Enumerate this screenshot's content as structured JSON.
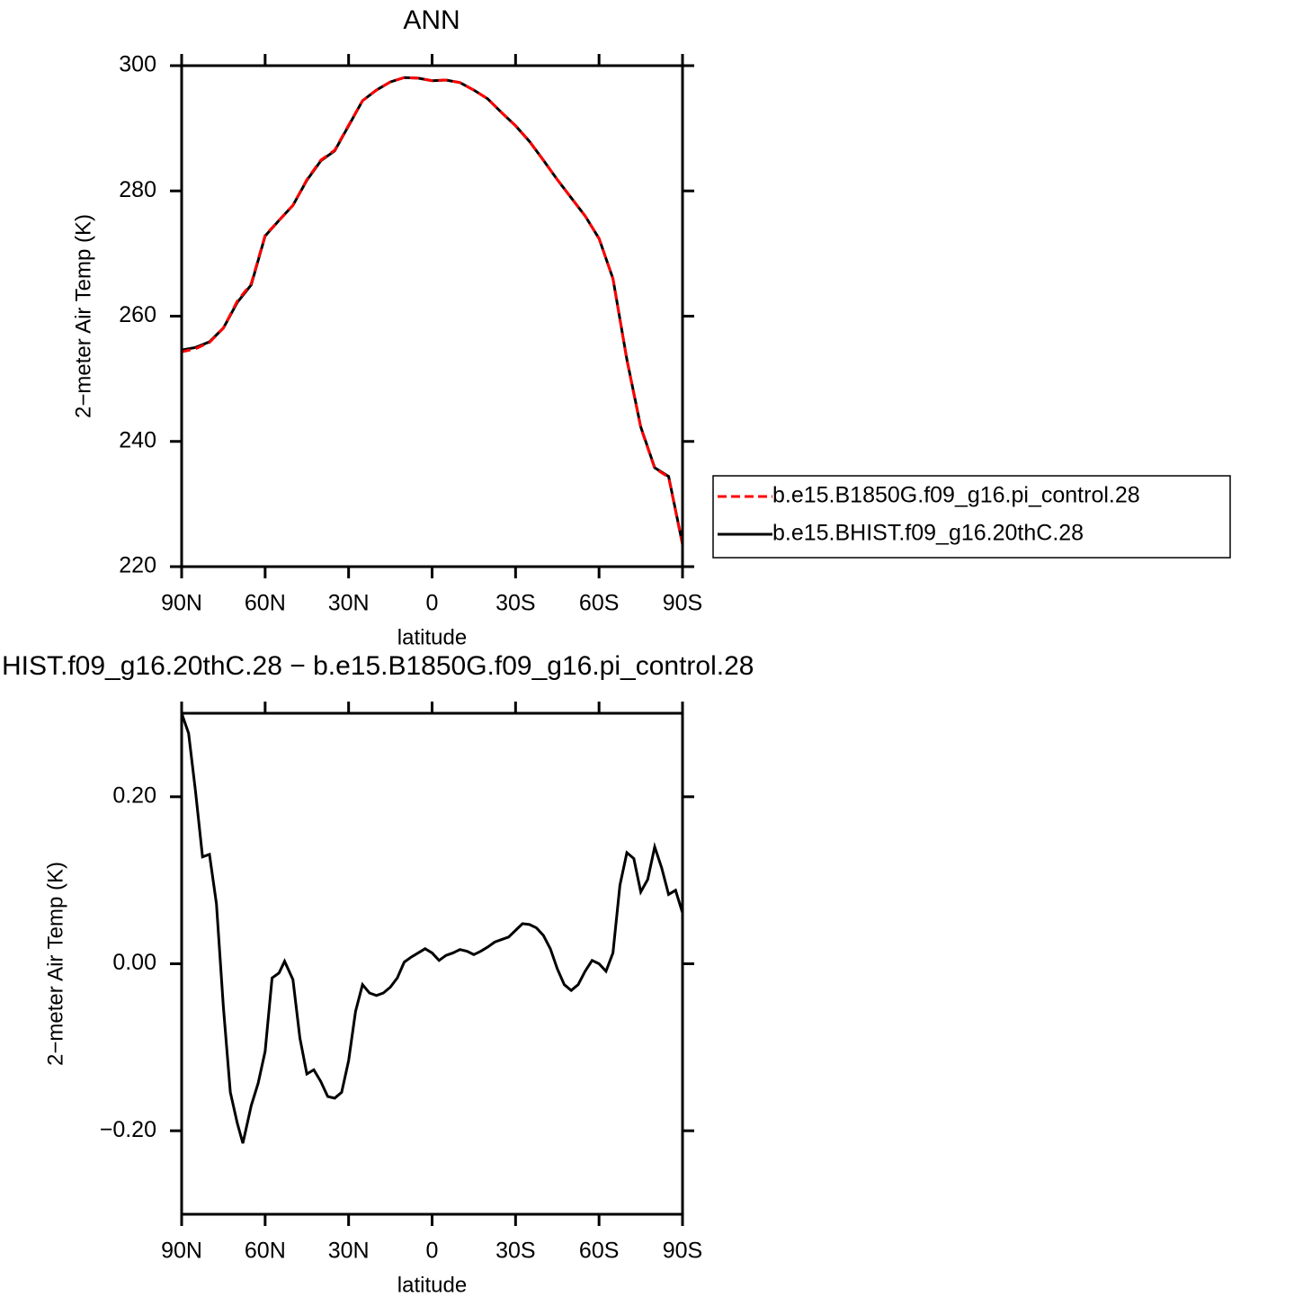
{
  "chart_data": [
    {
      "type": "line",
      "title": "ANN",
      "xlabel": "latitude",
      "ylabel": "2−meter Air Temp (K)",
      "x": [
        90,
        85,
        80,
        75,
        70,
        65,
        60,
        55,
        50,
        45,
        40,
        35,
        30,
        25,
        20,
        15,
        10,
        5,
        0,
        -5,
        -10,
        -15,
        -20,
        -25,
        -30,
        -35,
        -40,
        -45,
        -50,
        -55,
        -60,
        -65,
        -70,
        -75,
        -80,
        -85,
        -90
      ],
      "series": [
        {
          "name": "b.e15.B1850G.f09_g16.pi_control.28",
          "color": "#ff0000",
          "linestyle": "dashed",
          "values": [
            254.3,
            254.8,
            255.8,
            258.1,
            262.4,
            265.2,
            272.9,
            275.3,
            277.7,
            281.8,
            284.9,
            286.5,
            290.5,
            294.4,
            296.1,
            297.4,
            298.1,
            298.0,
            297.6,
            297.7,
            297.3,
            296.1,
            294.7,
            292.5,
            290.4,
            287.9,
            284.9,
            281.8,
            278.9,
            276.0,
            272.4,
            266.0,
            253.0,
            242.2,
            235.7,
            234.3,
            223.5
          ]
        },
        {
          "name": "b.e15.BHIST.f09_g16.20thC.28",
          "color": "#000000",
          "linestyle": "solid",
          "values": [
            254.6,
            255.0,
            255.9,
            258.1,
            262.2,
            265.0,
            272.8,
            275.3,
            277.7,
            281.7,
            284.8,
            286.4,
            290.4,
            294.4,
            296.1,
            297.4,
            298.1,
            298.0,
            297.6,
            297.7,
            297.3,
            296.1,
            294.7,
            292.5,
            290.4,
            287.9,
            284.9,
            281.8,
            278.9,
            276.0,
            272.4,
            266.0,
            253.1,
            242.3,
            235.8,
            234.4,
            223.6
          ]
        }
      ],
      "xlim": [
        90,
        -90
      ],
      "xticks": [
        {
          "value": 90,
          "label": "90N"
        },
        {
          "value": 60,
          "label": "60N"
        },
        {
          "value": 30,
          "label": "30N"
        },
        0,
        {
          "value": -30,
          "label": "30S"
        },
        {
          "value": -60,
          "label": "60S"
        },
        {
          "value": -90,
          "label": "90S"
        }
      ],
      "ylim": [
        220,
        300
      ],
      "yticks": [
        220,
        240,
        260,
        280,
        300
      ],
      "legend": "right"
    },
    {
      "type": "line",
      "title": "HIST.f09_g16.20thC.28 − b.e15.B1850G.f09_g16.pi_control.28",
      "xlabel": "latitude",
      "ylabel": "2−meter Air Temp (K)",
      "x": [
        90,
        87.5,
        85,
        82.5,
        80,
        77.5,
        75,
        72.5,
        70,
        68,
        65,
        62.5,
        60,
        57.5,
        55,
        53,
        50,
        47.5,
        45,
        42.5,
        40,
        37.5,
        35,
        32.5,
        30,
        27.5,
        25,
        22.5,
        20,
        17.5,
        15,
        12.5,
        10,
        7.5,
        5,
        2.5,
        0,
        -2.5,
        -5,
        -7.5,
        -10,
        -12.5,
        -15,
        -17.5,
        -20,
        -22.5,
        -25,
        -27.5,
        -30,
        -32.5,
        -35,
        -37.5,
        -40,
        -42.5,
        -45,
        -47.5,
        -50,
        -52.5,
        -55,
        -57.5,
        -60,
        -62.5,
        -65,
        -67.5,
        -70,
        -72.5,
        -75,
        -77.5,
        -80,
        -82.5,
        -85,
        -87.5,
        -90
      ],
      "series": [
        {
          "name": "b.e15.BHIST.f09_g16.20thC.28",
          "color": "#000000",
          "linestyle": "solid",
          "values": [
            0.3,
            0.276,
            0.206,
            0.128,
            0.131,
            0.072,
            -0.052,
            -0.154,
            -0.191,
            -0.215,
            -0.17,
            -0.143,
            -0.105,
            -0.017,
            -0.011,
            0.003,
            -0.019,
            -0.089,
            -0.132,
            -0.127,
            -0.141,
            -0.159,
            -0.161,
            -0.154,
            -0.116,
            -0.057,
            -0.025,
            -0.035,
            -0.038,
            -0.035,
            -0.028,
            -0.017,
            0.002,
            0.008,
            0.013,
            0.018,
            0.013,
            0.004,
            0.01,
            0.013,
            0.017,
            0.015,
            0.011,
            0.015,
            0.02,
            0.026,
            0.029,
            0.032,
            0.04,
            0.048,
            0.047,
            0.043,
            0.034,
            0.018,
            -0.006,
            -0.025,
            -0.032,
            -0.025,
            -0.009,
            0.004,
            0.0,
            -0.009,
            0.013,
            0.094,
            0.133,
            0.126,
            0.086,
            0.101,
            0.14,
            0.115,
            0.083,
            0.088,
            0.061
          ]
        }
      ],
      "xlim": [
        90,
        -90
      ],
      "xticks": [
        {
          "value": 90,
          "label": "90N"
        },
        {
          "value": 60,
          "label": "60N"
        },
        {
          "value": 30,
          "label": "30N"
        },
        0,
        {
          "value": -30,
          "label": "30S"
        },
        {
          "value": -60,
          "label": "60S"
        },
        {
          "value": -90,
          "label": "90S"
        }
      ],
      "ylim": [
        -0.3,
        0.3
      ],
      "yticks": [
        {
          "value": -0.2,
          "label": "−0.20"
        },
        {
          "value": 0,
          "label": "0.00"
        },
        {
          "value": 0.2,
          "label": "0.20"
        }
      ]
    }
  ]
}
